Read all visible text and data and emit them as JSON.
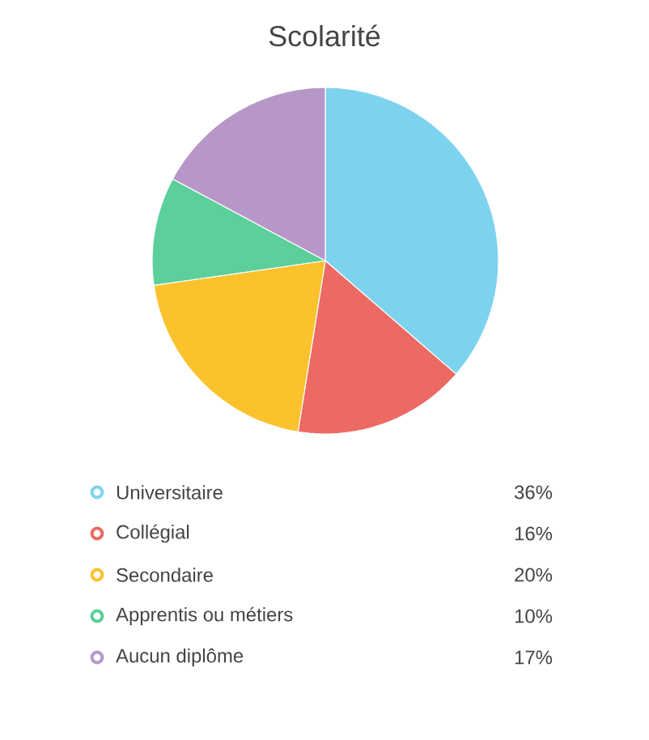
{
  "chart_data": {
    "type": "pie",
    "title": "Scolarité",
    "categories": [
      "Universitaire",
      "Collégial",
      "Secondaire",
      "Apprentis ou métiers",
      "Aucun diplôme"
    ],
    "values": [
      36,
      16,
      20,
      10,
      17
    ],
    "value_labels": [
      "36%",
      "16%",
      "20%",
      "10%",
      "17%"
    ],
    "colors": [
      "#7dd3ee",
      "#ec6a63",
      "#fcc22d",
      "#5ccf9a",
      "#b797c8"
    ],
    "legend": "bottom"
  }
}
